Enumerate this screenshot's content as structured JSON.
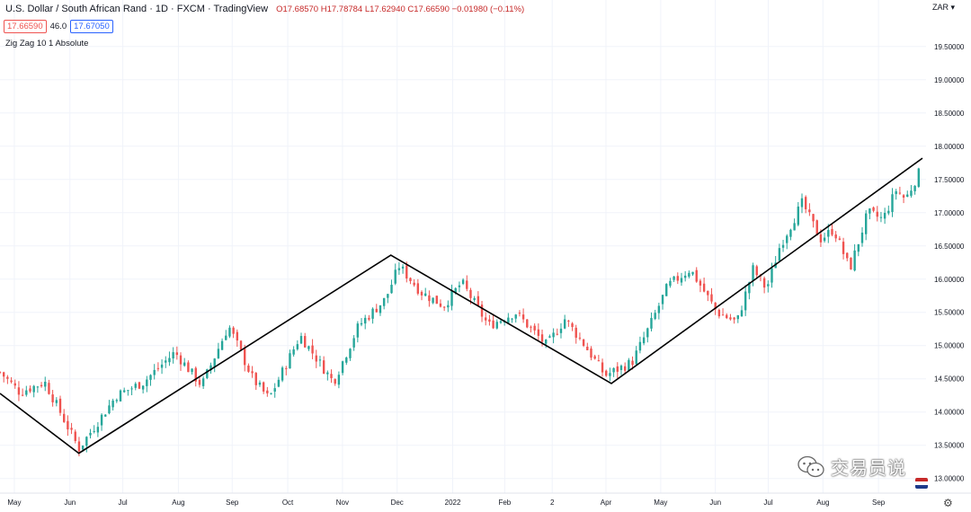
{
  "header": {
    "symbol": "U.S. Dollar / South African Rand · 1D · FXCM · TradingView",
    "ohlc": "O17.68570 H17.78784 L17.62940 C17.66590 −0.01980 (−0.11%)"
  },
  "quote": {
    "sell": "17.66590",
    "spread": "46.0",
    "buy": "17.67050"
  },
  "indicator_label": "Zig Zag 10 1 Absolute",
  "currency_selector": "ZAR ▾",
  "settings_icon": "gear-icon",
  "watermark_text": "交易员说",
  "colors": {
    "up": "#26a69a",
    "down": "#ef5350",
    "zigzag": "#000000",
    "grid": "#f0f3fa",
    "text": "#131722"
  },
  "chart_data": {
    "type": "candlestick",
    "y_axis": {
      "range": [
        12.78,
        20.2
      ],
      "ticks": [
        "19.50000",
        "19.00000",
        "18.50000",
        "18.00000",
        "17.50000",
        "17.00000",
        "16.50000",
        "16.00000",
        "15.50000",
        "15.00000",
        "14.50000",
        "14.00000",
        "13.50000",
        "13.00000"
      ]
    },
    "x_axis": {
      "labels": [
        "May",
        "Jun",
        "Jul",
        "Aug",
        "Sep",
        "Oct",
        "Nov",
        "Dec",
        "2022",
        "Feb",
        "2",
        "Apr",
        "May",
        "Jun",
        "Jul",
        "Aug",
        "Sep"
      ],
      "label_days": [
        16,
        78,
        137,
        199,
        259,
        321,
        382,
        443,
        505,
        563,
        616,
        676,
        737,
        798,
        857,
        918,
        980
      ],
      "total_days": 1029
    },
    "zigzag": [
      {
        "day": 0,
        "value": 14.28
      },
      {
        "day": 88,
        "value": 13.38
      },
      {
        "day": 436,
        "value": 16.36
      },
      {
        "day": 682,
        "value": 14.43
      },
      {
        "day": 1029,
        "value": 17.82
      }
    ],
    "price_path": [
      {
        "day": 0,
        "value": 14.6
      },
      {
        "day": 22,
        "value": 14.3
      },
      {
        "day": 50,
        "value": 14.45
      },
      {
        "day": 88,
        "value": 13.45
      },
      {
        "day": 130,
        "value": 14.25
      },
      {
        "day": 160,
        "value": 14.45
      },
      {
        "day": 195,
        "value": 14.9
      },
      {
        "day": 225,
        "value": 14.4
      },
      {
        "day": 255,
        "value": 15.3
      },
      {
        "day": 282,
        "value": 14.5
      },
      {
        "day": 300,
        "value": 14.2
      },
      {
        "day": 335,
        "value": 15.15
      },
      {
        "day": 372,
        "value": 14.45
      },
      {
        "day": 400,
        "value": 15.3
      },
      {
        "day": 430,
        "value": 15.7
      },
      {
        "day": 445,
        "value": 16.2
      },
      {
        "day": 470,
        "value": 15.8
      },
      {
        "day": 495,
        "value": 15.6
      },
      {
        "day": 515,
        "value": 15.95
      },
      {
        "day": 545,
        "value": 15.3
      },
      {
        "day": 575,
        "value": 15.5
      },
      {
        "day": 610,
        "value": 15.0
      },
      {
        "day": 630,
        "value": 15.4
      },
      {
        "day": 650,
        "value": 15.05
      },
      {
        "day": 675,
        "value": 14.55
      },
      {
        "day": 705,
        "value": 14.75
      },
      {
        "day": 725,
        "value": 15.3
      },
      {
        "day": 745,
        "value": 15.9
      },
      {
        "day": 770,
        "value": 16.15
      },
      {
        "day": 800,
        "value": 15.5
      },
      {
        "day": 822,
        "value": 15.35
      },
      {
        "day": 840,
        "value": 16.15
      },
      {
        "day": 855,
        "value": 15.85
      },
      {
        "day": 870,
        "value": 16.5
      },
      {
        "day": 895,
        "value": 17.15
      },
      {
        "day": 915,
        "value": 16.6
      },
      {
        "day": 930,
        "value": 16.75
      },
      {
        "day": 948,
        "value": 16.15
      },
      {
        "day": 968,
        "value": 17.0
      },
      {
        "day": 985,
        "value": 16.9
      },
      {
        "day": 1000,
        "value": 17.35
      },
      {
        "day": 1010,
        "value": 17.2
      },
      {
        "day": 1029,
        "value": 17.7
      }
    ]
  }
}
